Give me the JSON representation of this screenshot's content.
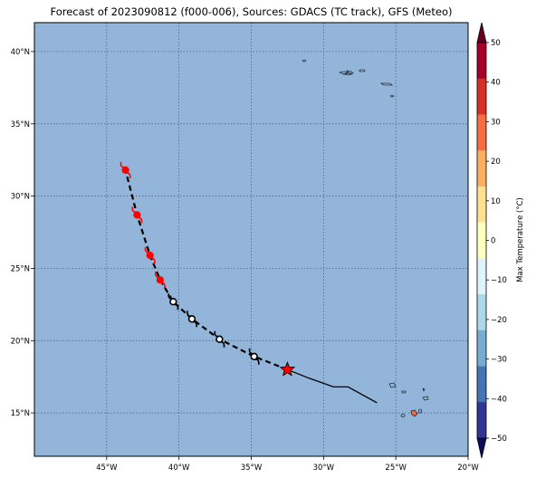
{
  "title": "Forecast of 2023090812 (f000-006), Sources: GDACS (TC track), GFS (Meteo)",
  "map": {
    "lon_range": [
      -50,
      -20
    ],
    "lat_range": [
      12,
      42
    ],
    "ocean_color": "#92b5d9",
    "grid": true,
    "lon_ticks": [
      {
        "value": -45,
        "label": "45°W"
      },
      {
        "value": -40,
        "label": "40°W"
      },
      {
        "value": -35,
        "label": "35°W"
      },
      {
        "value": -30,
        "label": "30°W"
      },
      {
        "value": -25,
        "label": "25°W"
      },
      {
        "value": -20,
        "label": "20°W"
      }
    ],
    "lat_ticks": [
      {
        "value": 15,
        "label": "15°N"
      },
      {
        "value": 20,
        "label": "20°N"
      },
      {
        "value": 25,
        "label": "25°N"
      },
      {
        "value": 30,
        "label": "30°N"
      },
      {
        "value": 35,
        "label": "35°N"
      },
      {
        "value": 40,
        "label": "40°N"
      }
    ]
  },
  "track": {
    "past": [
      [
        -26.3,
        15.7
      ],
      [
        -28.3,
        16.8
      ],
      [
        -29.3,
        16.8
      ],
      [
        -31.0,
        17.4
      ],
      [
        -32.5,
        18.0
      ]
    ],
    "current": [
      -32.5,
      18.0
    ],
    "forecast": [
      [
        -32.5,
        18.0
      ],
      [
        -34.8,
        18.9
      ],
      [
        -37.2,
        20.1
      ],
      [
        -39.1,
        21.5
      ],
      [
        -40.4,
        22.7
      ],
      [
        -41.3,
        24.2
      ],
      [
        -42.0,
        25.9
      ],
      [
        -42.9,
        28.7
      ],
      [
        -43.7,
        31.8
      ]
    ],
    "forecast_points": [
      {
        "lon": -34.8,
        "lat": 18.9,
        "category": "storm"
      },
      {
        "lon": -37.2,
        "lat": 20.1,
        "category": "storm"
      },
      {
        "lon": -39.1,
        "lat": 21.5,
        "category": "storm"
      },
      {
        "lon": -40.4,
        "lat": 22.7,
        "category": "storm"
      },
      {
        "lon": -41.3,
        "lat": 24.2,
        "category": "hurricane"
      },
      {
        "lon": -42.0,
        "lat": 25.9,
        "category": "hurricane"
      },
      {
        "lon": -42.9,
        "lat": 28.7,
        "category": "hurricane"
      },
      {
        "lon": -43.7,
        "lat": 31.8,
        "category": "hurricane"
      }
    ],
    "storm_color": "#000000",
    "hurricane_color": "#ff0000",
    "current_marker_color": "#ff0000"
  },
  "colorbar": {
    "label": "Max Temperature (°C)",
    "range": [
      -50,
      50
    ],
    "ticks": [
      "50",
      "40",
      "30",
      "20",
      "10",
      "0",
      "−10",
      "−20",
      "−30",
      "−40",
      "−50"
    ],
    "bands_top_to_bottom": [
      "#a50026",
      "#d73027",
      "#f46d43",
      "#fdae61",
      "#fee090",
      "#ffffbf",
      "#e0f3f8",
      "#abd9e9",
      "#74add1",
      "#4575b4",
      "#313695"
    ]
  }
}
